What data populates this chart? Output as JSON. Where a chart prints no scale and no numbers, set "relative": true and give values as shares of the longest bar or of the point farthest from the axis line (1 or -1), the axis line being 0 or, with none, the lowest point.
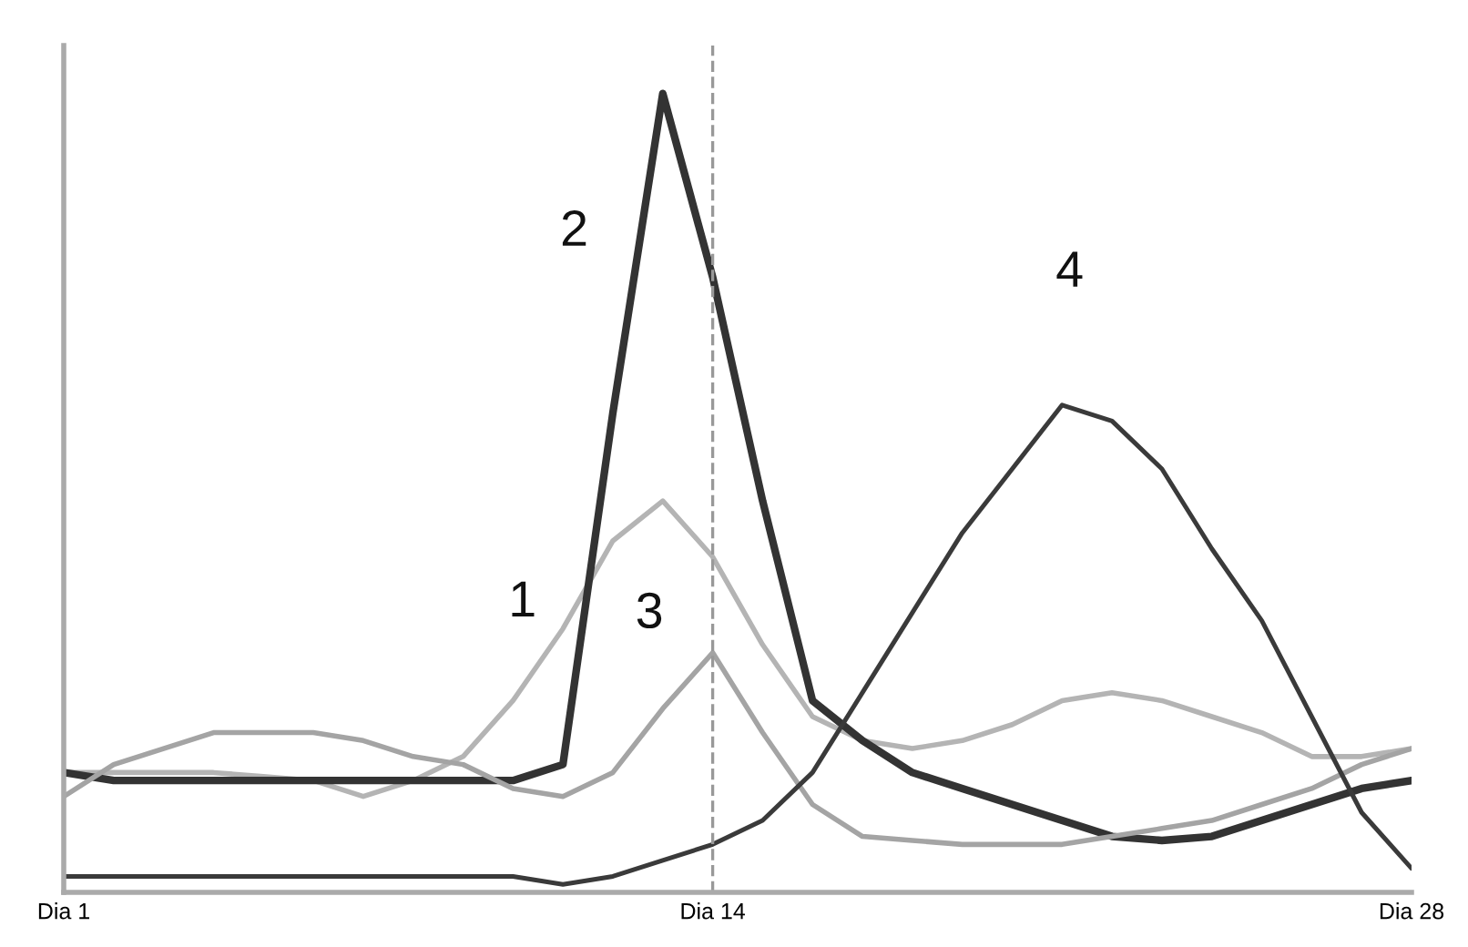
{
  "chart_data": {
    "type": "line",
    "relative": true,
    "grid": false,
    "legend": false,
    "marker": "none",
    "line_style": "solid",
    "categories": [
      "Dia 1",
      null,
      null,
      null,
      null,
      null,
      null,
      null,
      null,
      null,
      null,
      null,
      null,
      "Dia 14",
      null,
      null,
      null,
      null,
      null,
      null,
      null,
      null,
      null,
      null,
      null,
      null,
      null,
      "Dia 28"
    ],
    "ref_lines": [
      {
        "axis": "x",
        "value": "Dia 14",
        "label": null,
        "color": "#999999",
        "line_style": "dashed"
      }
    ],
    "series": [
      {
        "name": "1",
        "color": "#b4b4b4",
        "values": [
          0.15,
          0.15,
          0.15,
          0.15,
          0.145,
          0.14,
          0.12,
          0.14,
          0.17,
          0.24,
          0.33,
          0.44,
          0.49,
          0.42,
          0.31,
          0.22,
          0.19,
          0.18,
          0.19,
          0.21,
          0.24,
          0.25,
          0.24,
          0.22,
          0.2,
          0.17,
          0.17,
          0.18
        ]
      },
      {
        "name": "2",
        "color": "#333333",
        "values": [
          0.15,
          0.14,
          0.14,
          0.14,
          0.14,
          0.14,
          0.14,
          0.14,
          0.14,
          0.14,
          0.16,
          0.6,
          1,
          0.77,
          0.49,
          0.24,
          0.19,
          0.15,
          0.13,
          0.11,
          0.09,
          0.07,
          0.065,
          0.07,
          0.09,
          0.11,
          0.13,
          0.14
        ]
      },
      {
        "name": "3",
        "color": "#a4a4a4",
        "values": [
          0.12,
          0.16,
          0.18,
          0.2,
          0.2,
          0.2,
          0.19,
          0.17,
          0.16,
          0.13,
          0.12,
          0.15,
          0.23,
          0.3,
          0.2,
          0.11,
          0.07,
          0.065,
          0.06,
          0.06,
          0.06,
          0.07,
          0.08,
          0.09,
          0.11,
          0.13,
          0.16,
          0.18
        ]
      },
      {
        "name": "4",
        "color": "#3a3a3a",
        "values": [
          0.02,
          0.02,
          0.02,
          0.02,
          0.02,
          0.02,
          0.02,
          0.02,
          0.02,
          0.02,
          0.01,
          0.02,
          0.04,
          0.06,
          0.09,
          0.15,
          0.25,
          0.35,
          0.45,
          0.53,
          0.61,
          0.59,
          0.53,
          0.43,
          0.34,
          0.22,
          0.1,
          0.03
        ]
      }
    ]
  }
}
